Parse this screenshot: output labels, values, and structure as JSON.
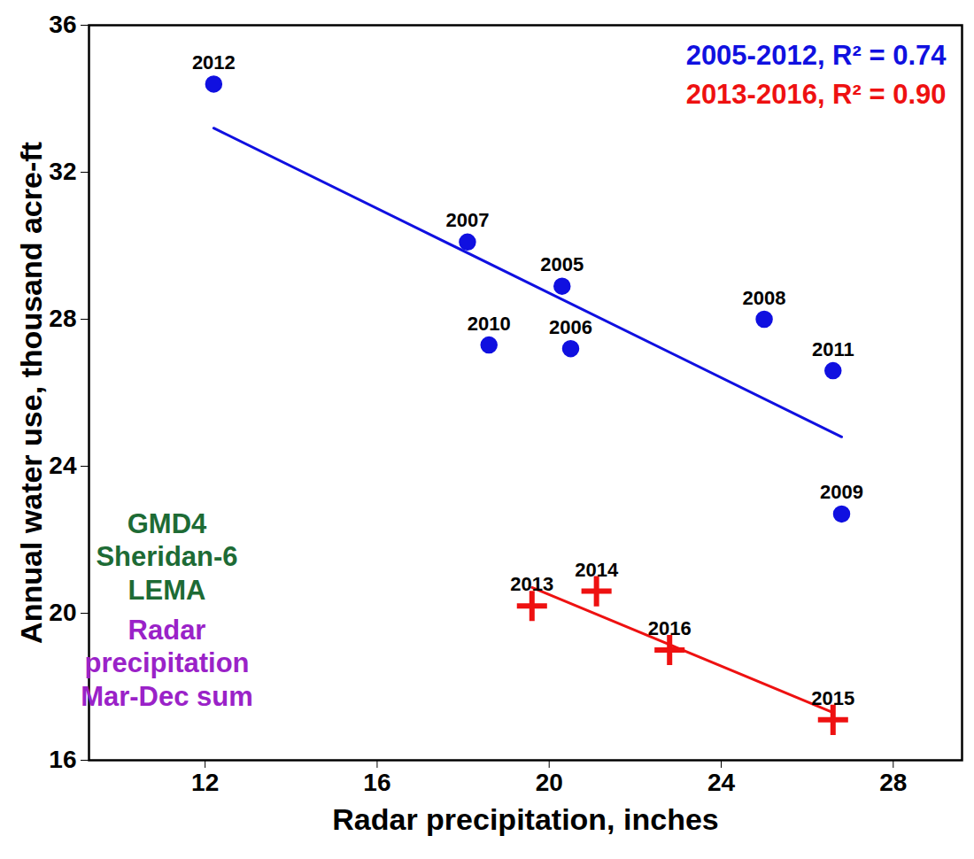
{
  "chart_data": {
    "type": "scatter",
    "x_label": "Radar precipitation, inches",
    "y_label": "Annual water use, thousand acre-ft",
    "xlim": [
      9.3,
      29.6
    ],
    "xticks": [
      12,
      16,
      20,
      24,
      28
    ],
    "ylim": [
      16,
      36
    ],
    "yticks": [
      16,
      20,
      24,
      28,
      32,
      36
    ],
    "grid": false,
    "legend": "top-right",
    "series": [
      {
        "name": "2005-2012, R² = 0.74",
        "color": "#1010e0",
        "marker": "circle",
        "labels": [
          "2012",
          "2007",
          "2005",
          "2010",
          "2006",
          "2008",
          "2011",
          "2009"
        ],
        "x": [
          12.2,
          18.1,
          20.3,
          18.6,
          20.5,
          25.0,
          26.6,
          26.8
        ],
        "values": [
          34.4,
          30.1,
          28.9,
          27.3,
          27.2,
          28.0,
          26.6,
          22.7
        ],
        "fit": {
          "x": [
            12.2,
            26.8
          ],
          "values": [
            33.2,
            24.8
          ]
        }
      },
      {
        "name": "2013-2016, R² = 0.90",
        "color": "#ee1111",
        "marker": "plus",
        "labels": [
          "2013",
          "2014",
          "2016",
          "2015"
        ],
        "x": [
          19.6,
          21.1,
          22.8,
          26.6
        ],
        "values": [
          20.2,
          20.6,
          19.0,
          17.1
        ],
        "fit": {
          "x": [
            19.6,
            26.6
          ],
          "values": [
            20.7,
            17.3
          ]
        }
      }
    ],
    "annotations": [
      {
        "lines": [
          "GMD4",
          "Sheridan-6",
          "LEMA"
        ],
        "color": "#1d6b35"
      },
      {
        "lines": [
          "Radar",
          "precipitation",
          "Mar-Dec sum"
        ],
        "color": "#9a22c8"
      }
    ]
  }
}
